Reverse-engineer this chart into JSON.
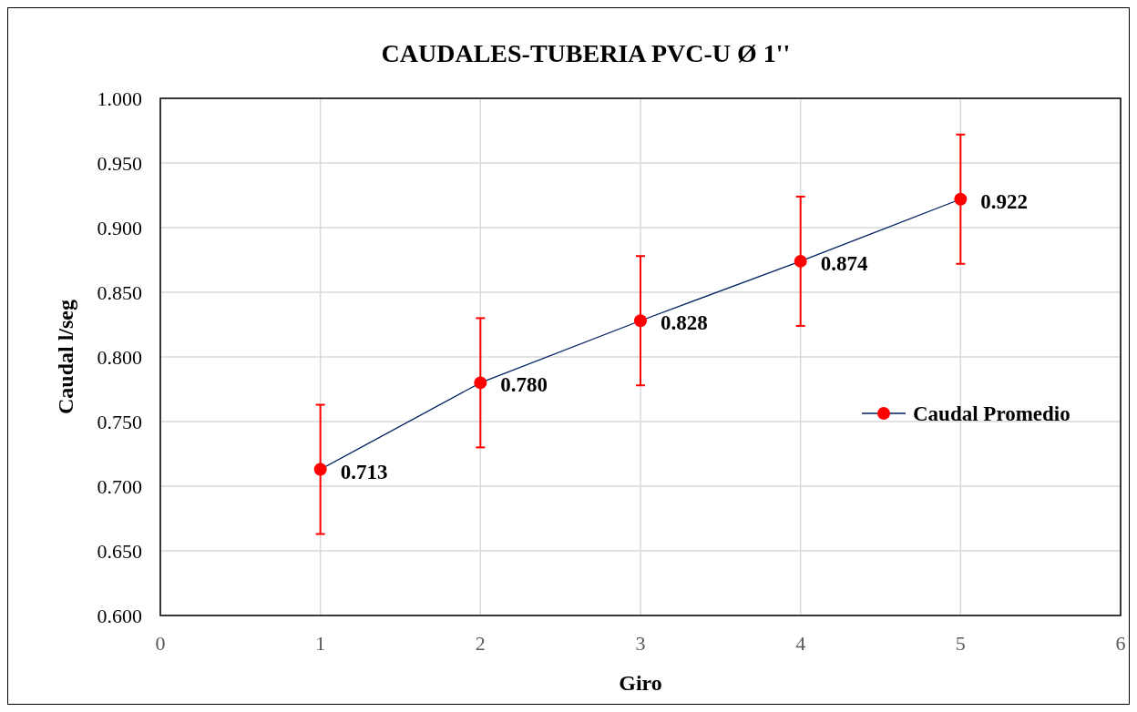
{
  "chart_data": {
    "type": "line",
    "title": "CAUDALES-TUBERIA PVC-U Ø 1''",
    "xlabel": "Giro",
    "ylabel": "Caudal l/seg",
    "x": [
      1,
      2,
      3,
      4,
      5
    ],
    "series": [
      {
        "name": "Caudal Promedio",
        "color": "#002060",
        "colors": [
          "#ff0000",
          "#ff0000",
          "#ff0000",
          "#ff0000",
          "#ff0000"
        ],
        "values": [
          0.713,
          0.78,
          0.828,
          0.874,
          0.922
        ],
        "errors": [
          0.05,
          0.05,
          0.05,
          0.05,
          0.05
        ],
        "value_labels": [
          "0.713",
          "0.780",
          "0.828",
          "0.874",
          "0.922"
        ]
      }
    ],
    "xlim": [
      0,
      6
    ],
    "xticks": [
      0,
      1,
      2,
      3,
      4,
      5,
      6
    ],
    "ylim": [
      0.6,
      1.0
    ],
    "yticks": [
      {
        "value": 0.6,
        "label": "0.600"
      },
      {
        "value": 0.65,
        "label": "0.650"
      },
      {
        "value": 0.7,
        "label": "0.700"
      },
      {
        "value": 0.75,
        "label": "0.750"
      },
      {
        "value": 0.8,
        "label": "0.800"
      },
      {
        "value": 0.85,
        "label": "0.850"
      },
      {
        "value": 0.9,
        "label": "0.900"
      },
      {
        "value": 0.95,
        "label": "0.950"
      },
      {
        "value": 1.0,
        "label": "1.000"
      }
    ],
    "grid": true,
    "legend": "right",
    "marker": "circle",
    "line_style": "solid"
  }
}
